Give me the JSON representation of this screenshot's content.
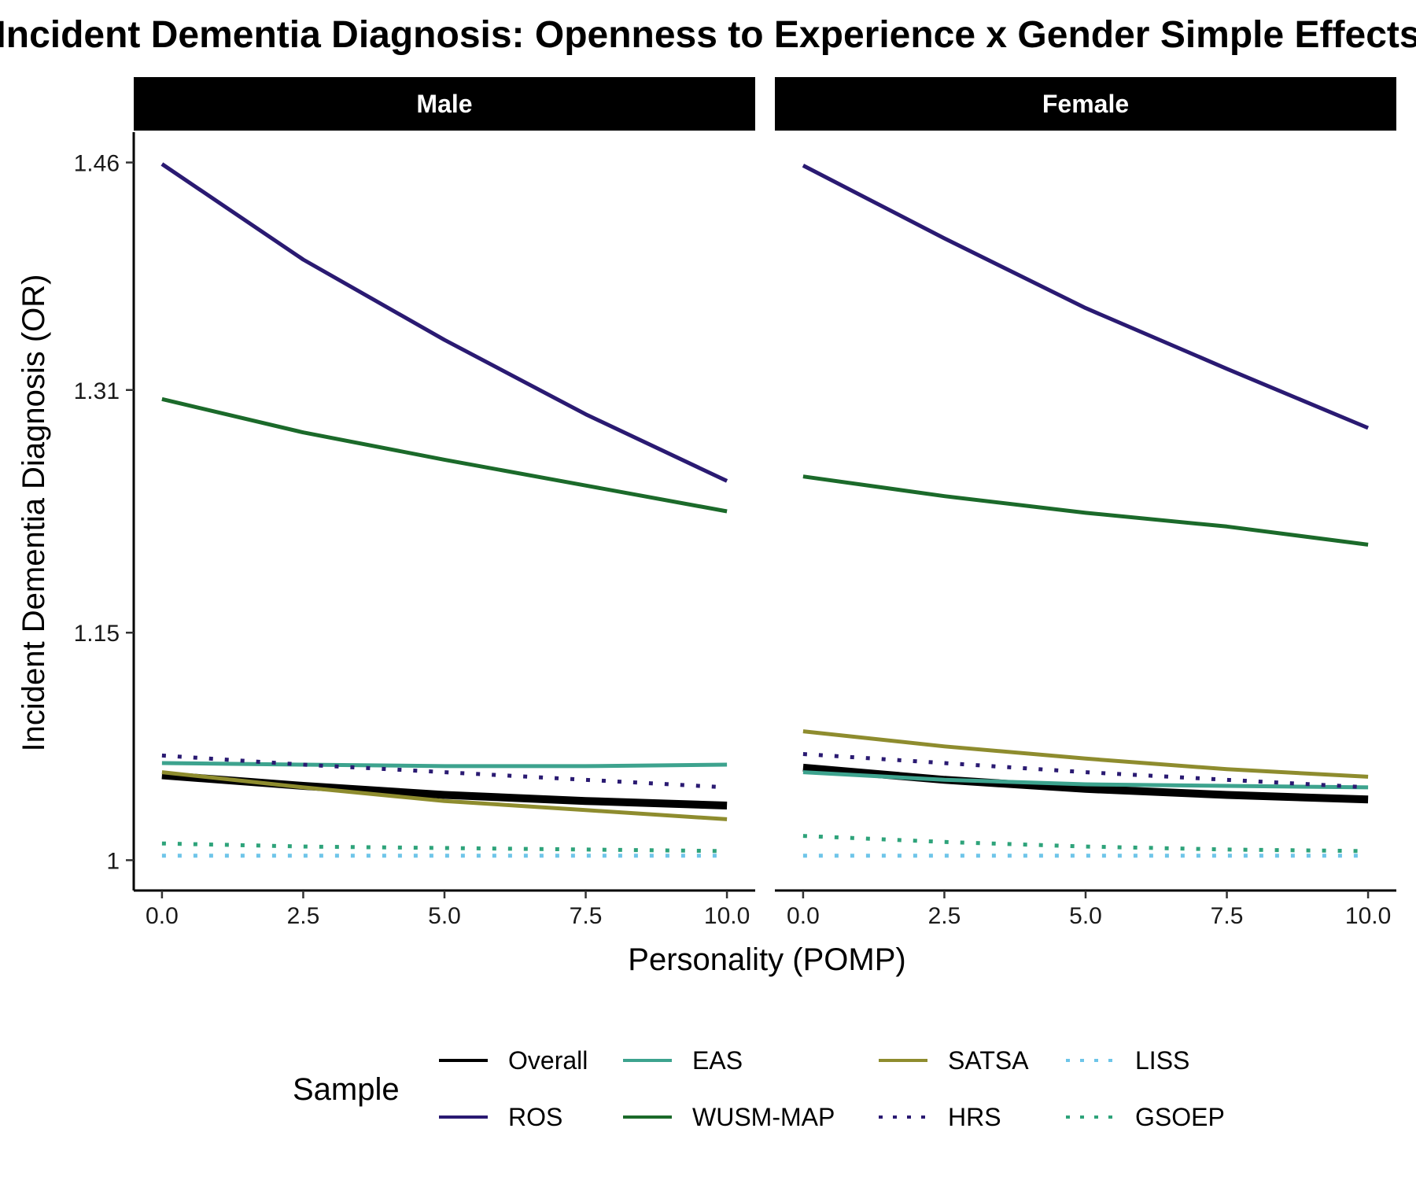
{
  "chart_data": {
    "type": "line",
    "title": "Incident Dementia Diagnosis: Openness to Experience x Gender Simple Effects",
    "xlabel": "Personality (POMP)",
    "ylabel": "Incident Dementia Diagnosis (OR)",
    "x_ticks": [
      "0.0",
      "2.5",
      "5.0",
      "7.5",
      "10.0"
    ],
    "x_tick_values": [
      0,
      2.5,
      5,
      7.5,
      10
    ],
    "xlim": [
      -0.5,
      10.5
    ],
    "y_ticks": [
      "1",
      "1.15",
      "1.31",
      "1.46"
    ],
    "y_tick_values": [
      1,
      1.15,
      1.31,
      1.46
    ],
    "ylim": [
      0.98,
      1.48
    ],
    "grid": false,
    "legend_title": "Sample",
    "legend_position": "bottom",
    "panels": [
      {
        "label": "Male",
        "series": [
          {
            "name": "Overall",
            "color": "#000000",
            "dash": "solid",
            "x": [
              0,
              2.5,
              5,
              7.5,
              10
            ],
            "y": [
              1.056,
              1.049,
              1.043,
              1.039,
              1.036
            ]
          },
          {
            "name": "ROS",
            "color": "#2a1a72",
            "dash": "solid",
            "x": [
              0,
              2.5,
              5,
              7.5,
              10
            ],
            "y": [
              1.459,
              1.396,
              1.343,
              1.294,
              1.25
            ]
          },
          {
            "name": "EAS",
            "color": "#3da38e",
            "dash": "solid",
            "x": [
              0,
              2.5,
              5,
              7.5,
              10
            ],
            "y": [
              1.064,
              1.063,
              1.062,
              1.062,
              1.063
            ]
          },
          {
            "name": "WUSM-MAP",
            "color": "#1b6a2a",
            "dash": "solid",
            "x": [
              0,
              2.5,
              5,
              7.5,
              10
            ],
            "y": [
              1.304,
              1.282,
              1.264,
              1.247,
              1.23
            ]
          },
          {
            "name": "SATSA",
            "color": "#8e8c2e",
            "dash": "solid",
            "x": [
              0,
              2.5,
              5,
              7.5,
              10
            ],
            "y": [
              1.058,
              1.048,
              1.039,
              1.033,
              1.027
            ]
          },
          {
            "name": "HRS",
            "color": "#2a1a72",
            "dash": "dotted",
            "x": [
              0,
              2.5,
              5,
              7.5,
              10
            ],
            "y": [
              1.069,
              1.063,
              1.058,
              1.053,
              1.048
            ]
          },
          {
            "name": "LISS",
            "color": "#6ec5e9",
            "dash": "dotted",
            "x": [
              0,
              2.5,
              5,
              7.5,
              10
            ],
            "y": [
              1.003,
              1.003,
              1.003,
              1.003,
              1.003
            ]
          },
          {
            "name": "GSOEP",
            "color": "#2ea37a",
            "dash": "dotted",
            "x": [
              0,
              2.5,
              5,
              7.5,
              10
            ],
            "y": [
              1.011,
              1.009,
              1.008,
              1.007,
              1.006
            ]
          }
        ]
      },
      {
        "label": "Female",
        "series": [
          {
            "name": "Overall",
            "color": "#000000",
            "dash": "solid",
            "x": [
              0,
              2.5,
              5,
              7.5,
              10
            ],
            "y": [
              1.061,
              1.053,
              1.047,
              1.043,
              1.04
            ]
          },
          {
            "name": "ROS",
            "color": "#2a1a72",
            "dash": "solid",
            "x": [
              0,
              2.5,
              5,
              7.5,
              10
            ],
            "y": [
              1.458,
              1.41,
              1.364,
              1.324,
              1.285
            ]
          },
          {
            "name": "EAS",
            "color": "#3da38e",
            "dash": "solid",
            "x": [
              0,
              2.5,
              5,
              7.5,
              10
            ],
            "y": [
              1.058,
              1.053,
              1.05,
              1.049,
              1.048
            ]
          },
          {
            "name": "WUSM-MAP",
            "color": "#1b6a2a",
            "dash": "solid",
            "x": [
              0,
              2.5,
              5,
              7.5,
              10
            ],
            "y": [
              1.253,
              1.24,
              1.229,
              1.22,
              1.208
            ]
          },
          {
            "name": "SATSA",
            "color": "#8e8c2e",
            "dash": "solid",
            "x": [
              0,
              2.5,
              5,
              7.5,
              10
            ],
            "y": [
              1.085,
              1.075,
              1.067,
              1.06,
              1.055
            ]
          },
          {
            "name": "HRS",
            "color": "#2a1a72",
            "dash": "dotted",
            "x": [
              0,
              2.5,
              5,
              7.5,
              10
            ],
            "y": [
              1.07,
              1.064,
              1.058,
              1.053,
              1.048
            ]
          },
          {
            "name": "LISS",
            "color": "#6ec5e9",
            "dash": "dotted",
            "x": [
              0,
              2.5,
              5,
              7.5,
              10
            ],
            "y": [
              1.003,
              1.003,
              1.003,
              1.003,
              1.003
            ]
          },
          {
            "name": "GSOEP",
            "color": "#2ea37a",
            "dash": "dotted",
            "x": [
              0,
              2.5,
              5,
              7.5,
              10
            ],
            "y": [
              1.016,
              1.012,
              1.009,
              1.007,
              1.006
            ]
          }
        ]
      }
    ],
    "legend": [
      {
        "name": "Overall",
        "color": "#000000",
        "dash": "solid"
      },
      {
        "name": "ROS",
        "color": "#2a1a72",
        "dash": "solid"
      },
      {
        "name": "EAS",
        "color": "#3da38e",
        "dash": "solid"
      },
      {
        "name": "WUSM-MAP",
        "color": "#1b6a2a",
        "dash": "solid"
      },
      {
        "name": "SATSA",
        "color": "#8e8c2e",
        "dash": "solid"
      },
      {
        "name": "HRS",
        "color": "#2a1a72",
        "dash": "dotted"
      },
      {
        "name": "LISS",
        "color": "#6ec5e9",
        "dash": "dotted"
      },
      {
        "name": "GSOEP",
        "color": "#2ea37a",
        "dash": "dotted"
      }
    ]
  }
}
